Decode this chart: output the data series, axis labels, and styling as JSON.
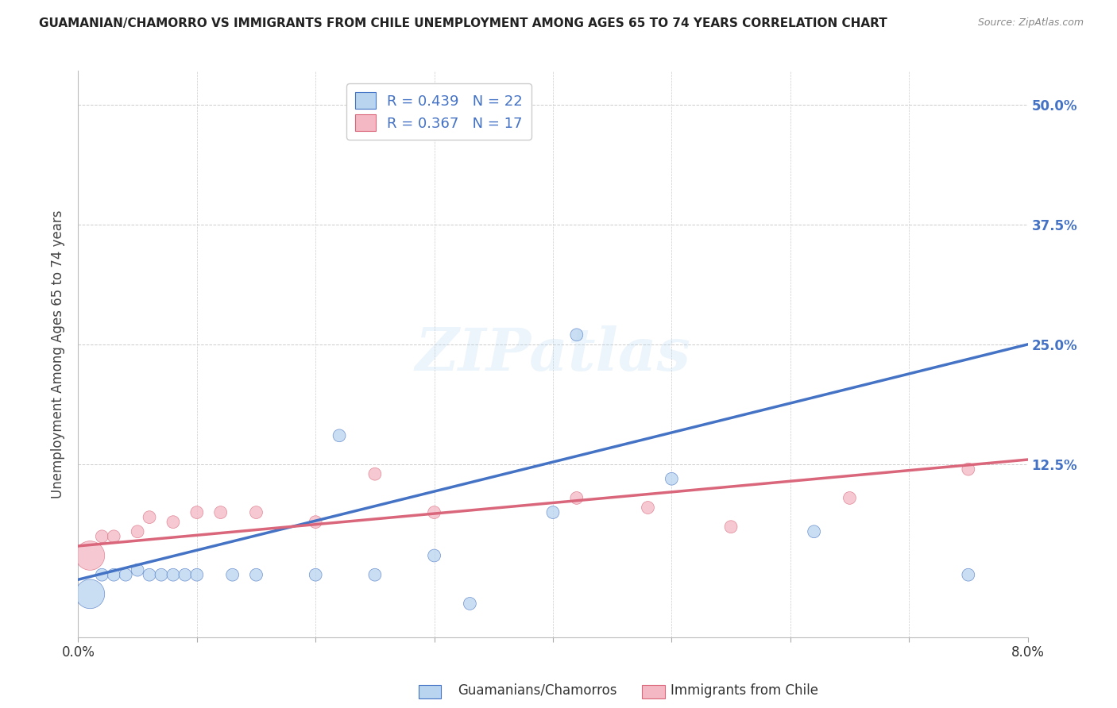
{
  "title": "GUAMANIAN/CHAMORRO VS IMMIGRANTS FROM CHILE UNEMPLOYMENT AMONG AGES 65 TO 74 YEARS CORRELATION CHART",
  "source": "Source: ZipAtlas.com",
  "ylabel": "Unemployment Among Ages 65 to 74 years",
  "ytick_labels": [
    "12.5%",
    "25.0%",
    "37.5%",
    "50.0%"
  ],
  "ytick_values": [
    0.125,
    0.25,
    0.375,
    0.5
  ],
  "xmin": 0.0,
  "xmax": 0.08,
  "ymin": -0.055,
  "ymax": 0.535,
  "watermark": "ZIPatlas",
  "legend1_label": "R = 0.439   N = 22",
  "legend2_label": "R = 0.367   N = 17",
  "legend1_color": "#b8d4ee",
  "legend2_color": "#f4b8c4",
  "line1_color": "#4472C4",
  "line2_color": "#d9667a",
  "scatter1_color": "#b8d4ee",
  "scatter2_color": "#f4b8c4",
  "scatter1_edge": "#4472C4",
  "scatter2_edge": "#d9667a",
  "blue_x": [
    0.001,
    0.002,
    0.003,
    0.004,
    0.005,
    0.006,
    0.007,
    0.008,
    0.009,
    0.01,
    0.013,
    0.015,
    0.02,
    0.022,
    0.025,
    0.03,
    0.033,
    0.04,
    0.042,
    0.05,
    0.062,
    0.075
  ],
  "blue_y": [
    -0.01,
    0.01,
    0.01,
    0.01,
    0.015,
    0.01,
    0.01,
    0.01,
    0.01,
    0.01,
    0.01,
    0.01,
    0.01,
    0.155,
    0.01,
    0.03,
    -0.02,
    0.075,
    0.26,
    0.11,
    0.055,
    0.01
  ],
  "blue_sizes": [
    700,
    130,
    130,
    130,
    130,
    130,
    130,
    130,
    130,
    130,
    130,
    130,
    130,
    130,
    130,
    130,
    130,
    130,
    130,
    130,
    130,
    130
  ],
  "pink_x": [
    0.001,
    0.002,
    0.003,
    0.005,
    0.006,
    0.008,
    0.01,
    0.012,
    0.015,
    0.02,
    0.025,
    0.03,
    0.042,
    0.048,
    0.055,
    0.065,
    0.075
  ],
  "pink_y": [
    0.03,
    0.05,
    0.05,
    0.055,
    0.07,
    0.065,
    0.075,
    0.075,
    0.075,
    0.065,
    0.115,
    0.075,
    0.09,
    0.08,
    0.06,
    0.09,
    0.12
  ],
  "pink_sizes": [
    700,
    130,
    130,
    130,
    130,
    130,
    130,
    130,
    130,
    130,
    130,
    130,
    130,
    130,
    130,
    130,
    130
  ],
  "line1_x": [
    0.0,
    0.08
  ],
  "line1_y": [
    0.005,
    0.25
  ],
  "line2_x": [
    0.0,
    0.08
  ],
  "line2_y": [
    0.04,
    0.13
  ],
  "legend_text_color": "#4472C4",
  "title_color": "#222222",
  "axis_label_color": "#444444",
  "tick_color_right": "#4472C4",
  "grid_color": "#cccccc",
  "bottom_label1": "Guamanians/Chamorros",
  "bottom_label2": "Immigrants from Chile"
}
